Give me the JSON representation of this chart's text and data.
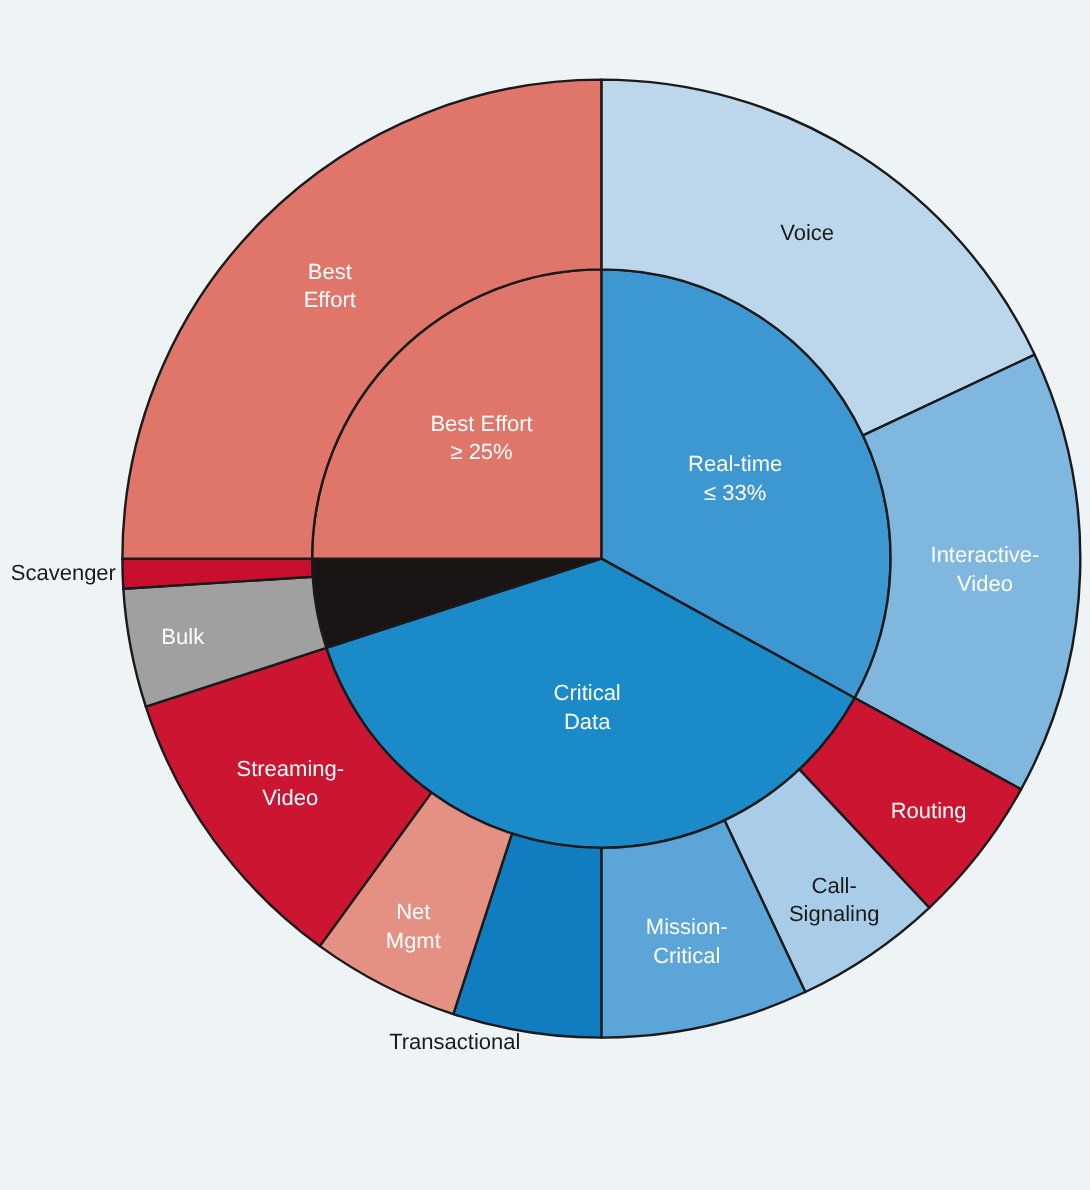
{
  "chart_data": [
    {
      "type": "pie",
      "legend": false,
      "categories": [
        "Real-time",
        "Critical\nData",
        null,
        "Best Effort"
      ],
      "values": [
        33,
        37,
        5,
        25
      ],
      "value_labels": [
        "≤ 33%",
        null,
        null,
        "≥ 25%"
      ],
      "colors": [
        "#3d97d1",
        "#1a8ac8",
        "#1a1414",
        "#e0756a"
      ]
    },
    {
      "type": "donut",
      "legend": false,
      "categories": [
        "Voice",
        "Interactive-\nVideo",
        "Routing",
        "Call-\nSignaling",
        "Mission-\nCritical",
        "Transactional",
        "Net\nMgmt",
        "Streaming-\nVideo",
        "Bulk",
        "Scavenger",
        "Best\nEffort"
      ],
      "values": [
        18,
        15,
        5,
        5,
        7,
        5,
        5,
        10,
        4,
        1,
        25
      ],
      "colors": [
        "#bcd7ec",
        "#7fb7df",
        "#cc1530",
        "#a9cde9",
        "#5ba5d8",
        "#0f7dc0",
        "#e49184",
        "#cc1530",
        "#a0a0a0",
        "#c8102e",
        "#e0756a"
      ]
    }
  ]
}
